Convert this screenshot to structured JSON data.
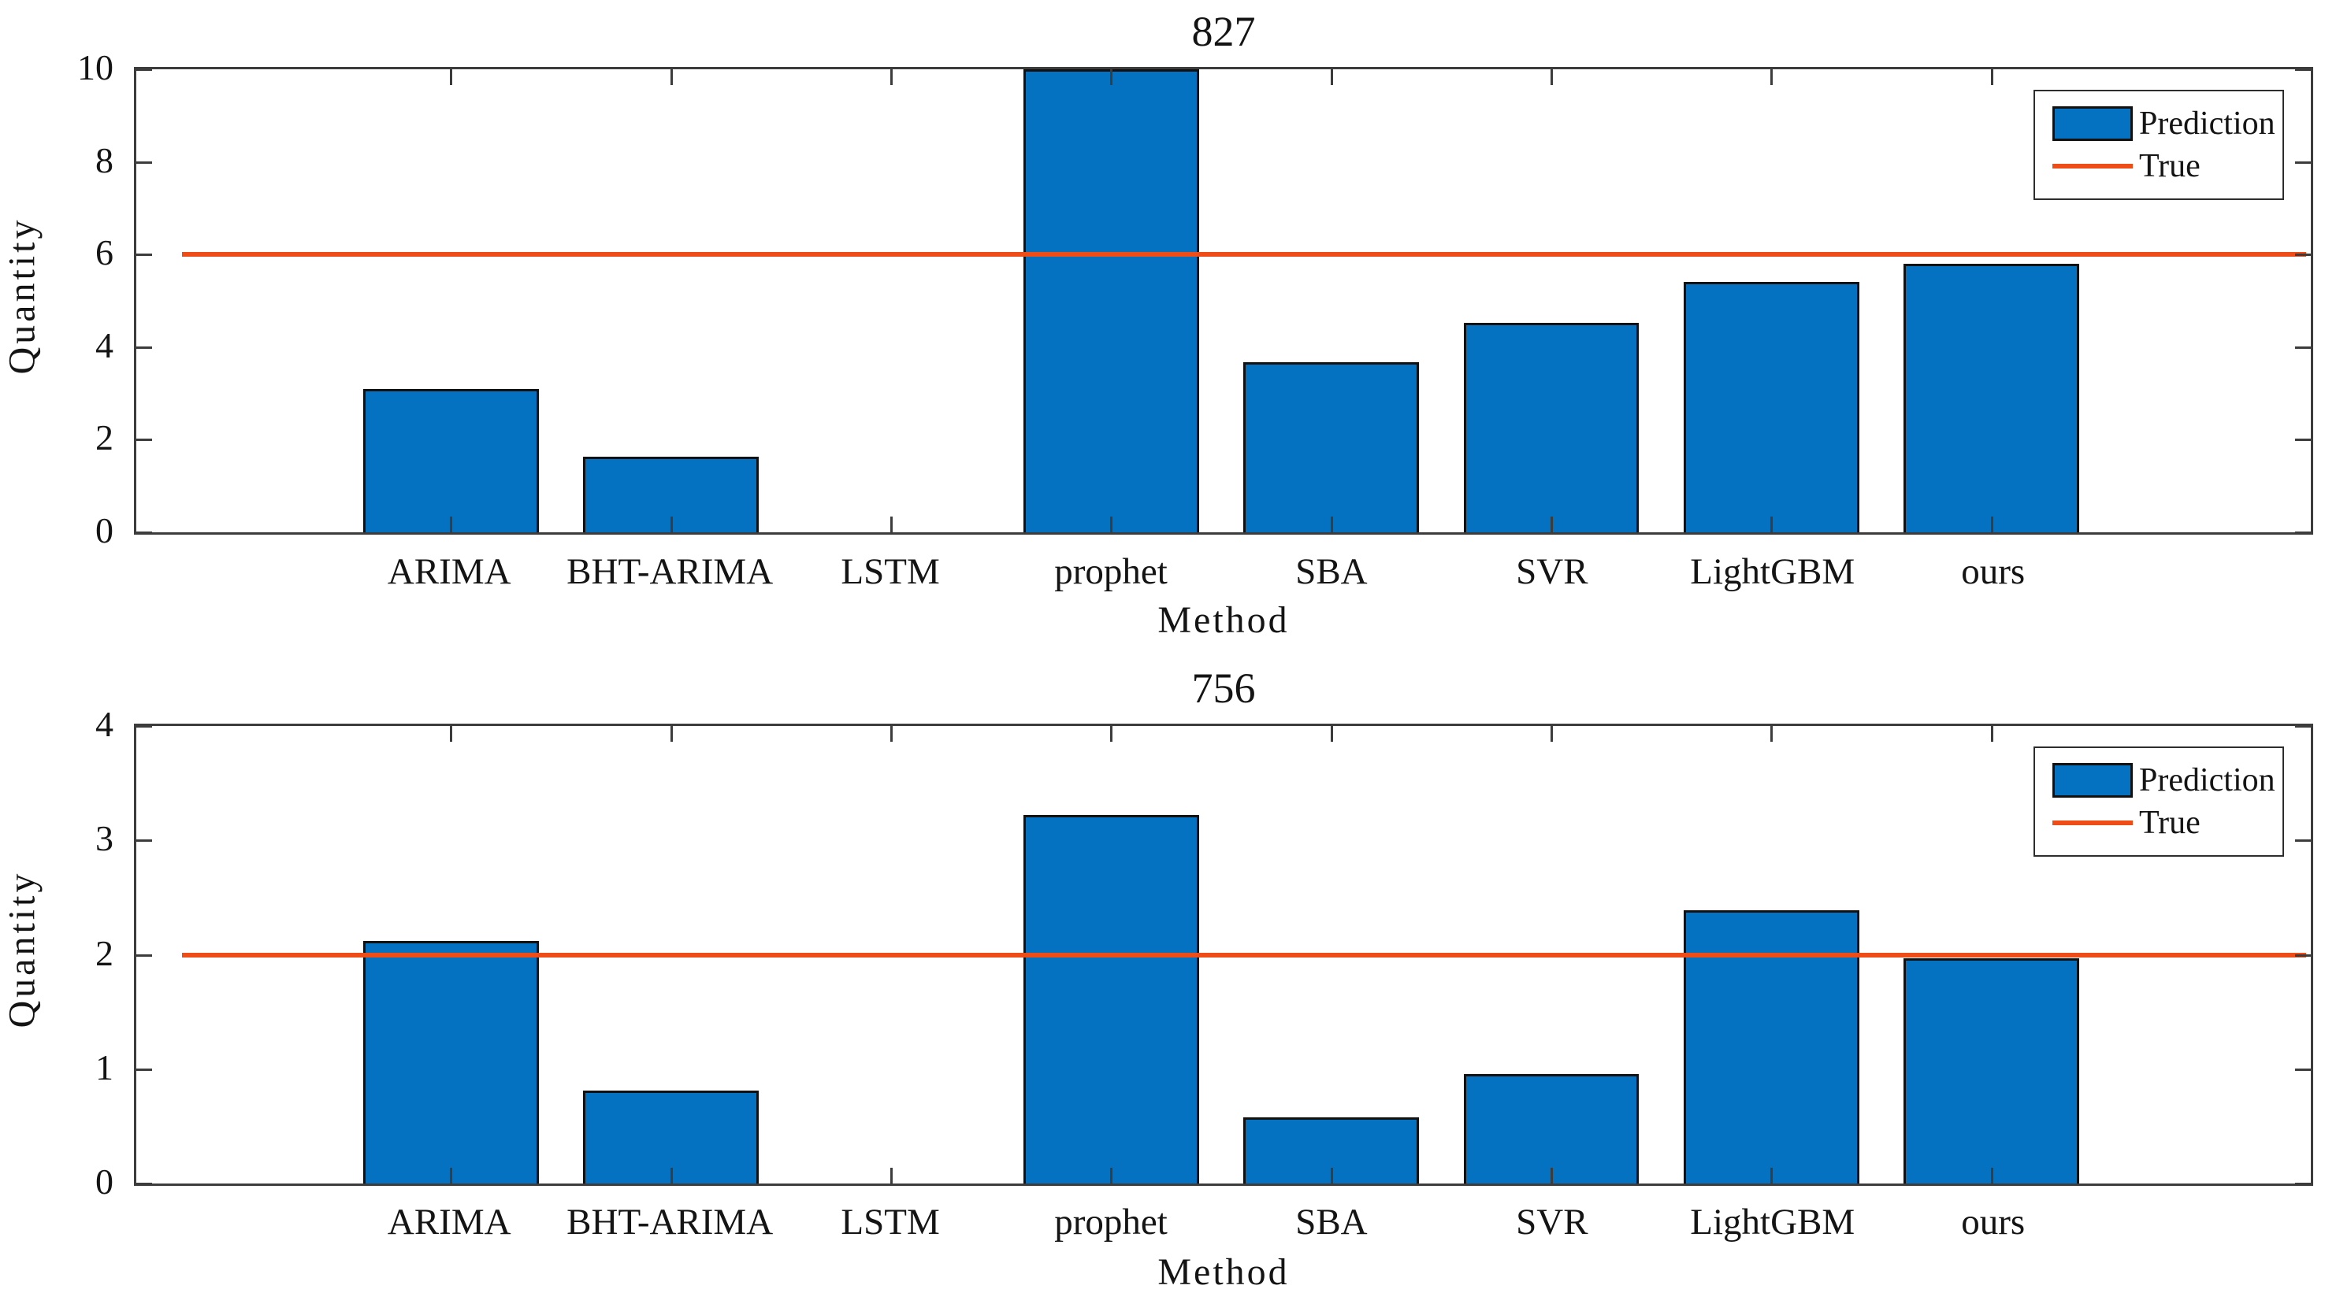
{
  "figure": {
    "background_color": "#ffffff",
    "bar_color": "#0572C1",
    "bar_edge_color": "#111111",
    "true_line_color": "#EE4D17",
    "axis_color": "#3c3c3c"
  },
  "legend": {
    "prediction_label": "Prediction",
    "true_label": "True",
    "position": "top-right"
  },
  "chart_data": [
    {
      "type": "bar",
      "title": "827",
      "xlabel": "Method",
      "ylabel": "Quantity",
      "categories": [
        "ARIMA",
        "BHT-ARIMA",
        "LSTM",
        "prophet",
        "SBA",
        "SVR",
        "LightGBM",
        "ours"
      ],
      "ylim": [
        0,
        10
      ],
      "yticks": [
        0,
        2,
        4,
        6,
        8,
        10
      ],
      "grid": false,
      "legend_position": "top-right",
      "series": [
        {
          "name": "Prediction",
          "type": "bar",
          "values": [
            3.1,
            1.63,
            0,
            10.2,
            3.67,
            4.52,
            5.4,
            5.8
          ],
          "note": "prophet bar exceeds axis and is clipped at 10"
        },
        {
          "name": "True",
          "type": "hline",
          "value": 6
        }
      ]
    },
    {
      "type": "bar",
      "title": "756",
      "xlabel": "Method",
      "ylabel": "Quantity",
      "categories": [
        "ARIMA",
        "BHT-ARIMA",
        "LSTM",
        "prophet",
        "SBA",
        "SVR",
        "LightGBM",
        "ours"
      ],
      "ylim": [
        0,
        4
      ],
      "yticks": [
        0,
        1,
        2,
        3,
        4
      ],
      "grid": false,
      "legend_position": "top-right",
      "series": [
        {
          "name": "Prediction",
          "type": "bar",
          "values": [
            2.12,
            0.81,
            0,
            3.22,
            0.58,
            0.96,
            2.39,
            1.97
          ]
        },
        {
          "name": "True",
          "type": "hline",
          "value": 2
        }
      ]
    }
  ]
}
